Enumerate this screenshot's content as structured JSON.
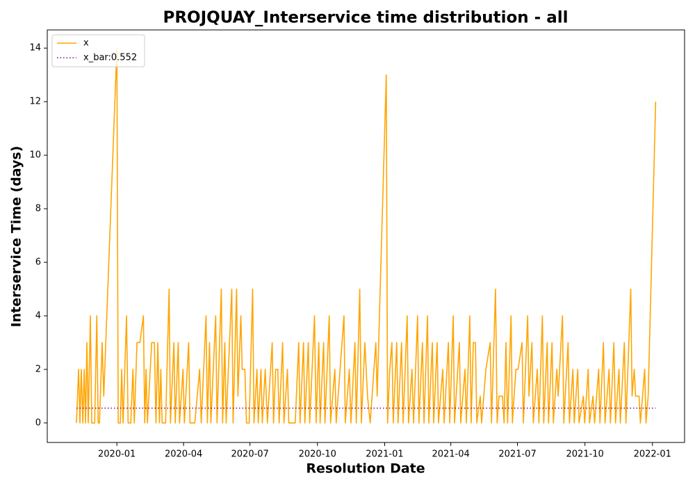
{
  "chart_data": {
    "type": "line",
    "title": "PROJQUAY_Interservice time distribution - all",
    "x_label": "Resolution Date",
    "y_label": "Interservice Time (days)",
    "x": [
      2019.849,
      2019.857,
      2019.862,
      2019.867,
      2019.873,
      2019.878,
      2019.883,
      2019.888,
      2019.893,
      2019.901,
      2019.906,
      2019.917,
      2019.925,
      2019.93,
      2019.935,
      2019.945,
      2019.951,
      2020.0,
      2020.005,
      2020.013,
      2020.018,
      2020.023,
      2020.036,
      2020.042,
      2020.052,
      2020.06,
      2020.065,
      2020.075,
      2020.086,
      2020.099,
      2020.104,
      2020.109,
      2020.114,
      2020.13,
      2020.14,
      2020.146,
      2020.153,
      2020.159,
      2020.164,
      2020.169,
      2020.182,
      2020.195,
      2020.2,
      2020.213,
      2020.218,
      2020.229,
      2020.234,
      2020.247,
      2020.252,
      2020.268,
      2020.273,
      2020.291,
      2020.309,
      2020.315,
      2020.333,
      2020.338,
      2020.346,
      2020.351,
      2020.369,
      2020.374,
      2020.39,
      2020.395,
      2020.403,
      2020.408,
      2020.429,
      2020.434,
      2020.447,
      2020.452,
      2020.463,
      2020.468,
      2020.478,
      2020.484,
      2020.494,
      2020.507,
      2020.512,
      2020.523,
      2020.528,
      2020.538,
      2020.543,
      2020.554,
      2020.562,
      2020.58,
      2020.585,
      2020.593,
      2020.601,
      2020.606,
      2020.619,
      2020.624,
      2020.637,
      2020.642,
      2020.666,
      2020.679,
      2020.684,
      2020.697,
      2020.702,
      2020.715,
      2020.72,
      2020.738,
      2020.744,
      2020.754,
      2020.759,
      2020.772,
      2020.777,
      2020.793,
      2020.798,
      2020.814,
      2020.819,
      2020.848,
      2020.853,
      2020.868,
      2020.874,
      2020.889,
      2020.894,
      2020.907,
      2020.913,
      2020.926,
      2020.936,
      2020.946,
      2020.967,
      2020.972,
      2021.006,
      2021.011,
      2021.019,
      2021.027,
      2021.032,
      2021.045,
      2021.05,
      2021.063,
      2021.069,
      2021.084,
      2021.089,
      2021.102,
      2021.108,
      2021.123,
      2021.128,
      2021.141,
      2021.147,
      2021.16,
      2021.165,
      2021.178,
      2021.183,
      2021.196,
      2021.201,
      2021.217,
      2021.222,
      2021.238,
      2021.243,
      2021.256,
      2021.261,
      2021.279,
      2021.284,
      2021.3,
      2021.305,
      2021.318,
      2021.323,
      2021.331,
      2021.339,
      2021.344,
      2021.357,
      2021.362,
      2021.378,
      2021.394,
      2021.399,
      2021.414,
      2021.42,
      2021.427,
      2021.44,
      2021.446,
      2021.453,
      2021.459,
      2021.472,
      2021.477,
      2021.49,
      2021.498,
      2021.513,
      2021.518,
      2021.534,
      2021.539,
      2021.55,
      2021.555,
      2021.57,
      2021.576,
      2021.589,
      2021.594,
      2021.607,
      2021.612,
      2021.625,
      2021.63,
      2021.643,
      2021.648,
      2021.664,
      2021.669,
      2021.685,
      2021.69,
      2021.703,
      2021.708,
      2021.721,
      2021.726,
      2021.742,
      2021.747,
      2021.76,
      2021.765,
      2021.778,
      2021.784,
      2021.799,
      2021.804,
      2021.817,
      2021.823,
      2021.838,
      2021.843,
      2021.856,
      2021.862,
      2021.875,
      2021.88,
      2021.895,
      2021.901,
      2021.919,
      2021.924,
      2021.932,
      2021.937,
      2021.95,
      2021.955,
      2021.971,
      2021.976,
      2021.984,
      2022.012
    ],
    "series": [
      {
        "name": "x",
        "color": "#ffa500",
        "values": [
          0,
          2,
          0,
          2,
          0,
          2,
          0,
          3,
          0,
          4,
          0,
          0,
          4,
          0,
          0,
          3,
          1,
          14,
          0,
          0,
          2,
          0,
          4,
          0,
          0,
          2,
          0,
          3,
          3,
          4,
          0,
          2,
          0,
          3,
          3,
          0,
          3,
          0,
          2,
          0,
          0,
          5,
          0,
          3,
          0,
          3,
          0,
          2,
          0,
          3,
          0,
          0,
          2,
          0,
          4,
          0,
          3,
          0,
          4,
          0,
          5,
          0,
          3,
          0,
          5,
          0,
          5,
          1,
          4,
          2,
          2,
          0,
          0,
          5,
          0,
          2,
          0,
          2,
          0,
          2,
          0,
          3,
          0,
          2,
          2,
          0,
          3,
          0,
          2,
          0,
          0,
          3,
          0,
          3,
          0,
          3,
          0,
          4,
          0,
          3,
          0,
          3,
          0,
          4,
          0,
          2,
          0,
          4,
          0,
          2,
          0,
          3,
          0,
          5,
          0,
          3,
          1,
          0,
          3,
          1,
          13,
          0,
          2,
          3,
          0,
          3,
          0,
          3,
          0,
          4,
          0,
          2,
          0,
          4,
          0,
          3,
          0,
          4,
          0,
          3,
          0,
          3,
          0,
          2,
          0,
          3,
          0,
          4,
          0,
          3,
          0,
          2,
          0,
          4,
          0,
          3,
          3,
          0,
          1,
          0,
          2,
          3,
          0,
          5,
          0,
          1,
          1,
          0,
          3,
          0,
          4,
          0,
          2,
          2,
          3,
          0,
          4,
          1,
          3,
          0,
          2,
          0,
          4,
          0,
          3,
          0,
          3,
          0,
          2,
          1,
          4,
          0,
          3,
          0,
          2,
          0,
          2,
          0,
          1,
          0,
          2,
          0,
          1,
          0,
          2,
          0,
          3,
          0,
          2,
          0,
          3,
          0,
          2,
          0,
          3,
          0,
          5,
          1,
          2,
          1,
          1,
          0,
          2,
          0,
          1,
          12
        ]
      },
      {
        "name": "x_bar:0.552",
        "color": "#800080",
        "value": 0.552
      }
    ],
    "xlim": [
      2019.74,
      2022.12
    ],
    "ylim": [
      -0.73,
      14.68
    ],
    "xticks": [
      {
        "value": 2020.0,
        "label": "2020-01"
      },
      {
        "value": 2020.249,
        "label": "2020-04"
      },
      {
        "value": 2020.497,
        "label": "2020-07"
      },
      {
        "value": 2020.749,
        "label": "2020-10"
      },
      {
        "value": 2021.0,
        "label": "2021-01"
      },
      {
        "value": 2021.247,
        "label": "2021-04"
      },
      {
        "value": 2021.496,
        "label": "2021-07"
      },
      {
        "value": 2021.748,
        "label": "2021-10"
      },
      {
        "value": 2022.0,
        "label": "2022-01"
      }
    ],
    "yticks": [
      0,
      2,
      4,
      6,
      8,
      10,
      12,
      14
    ],
    "legend": "upper left"
  }
}
